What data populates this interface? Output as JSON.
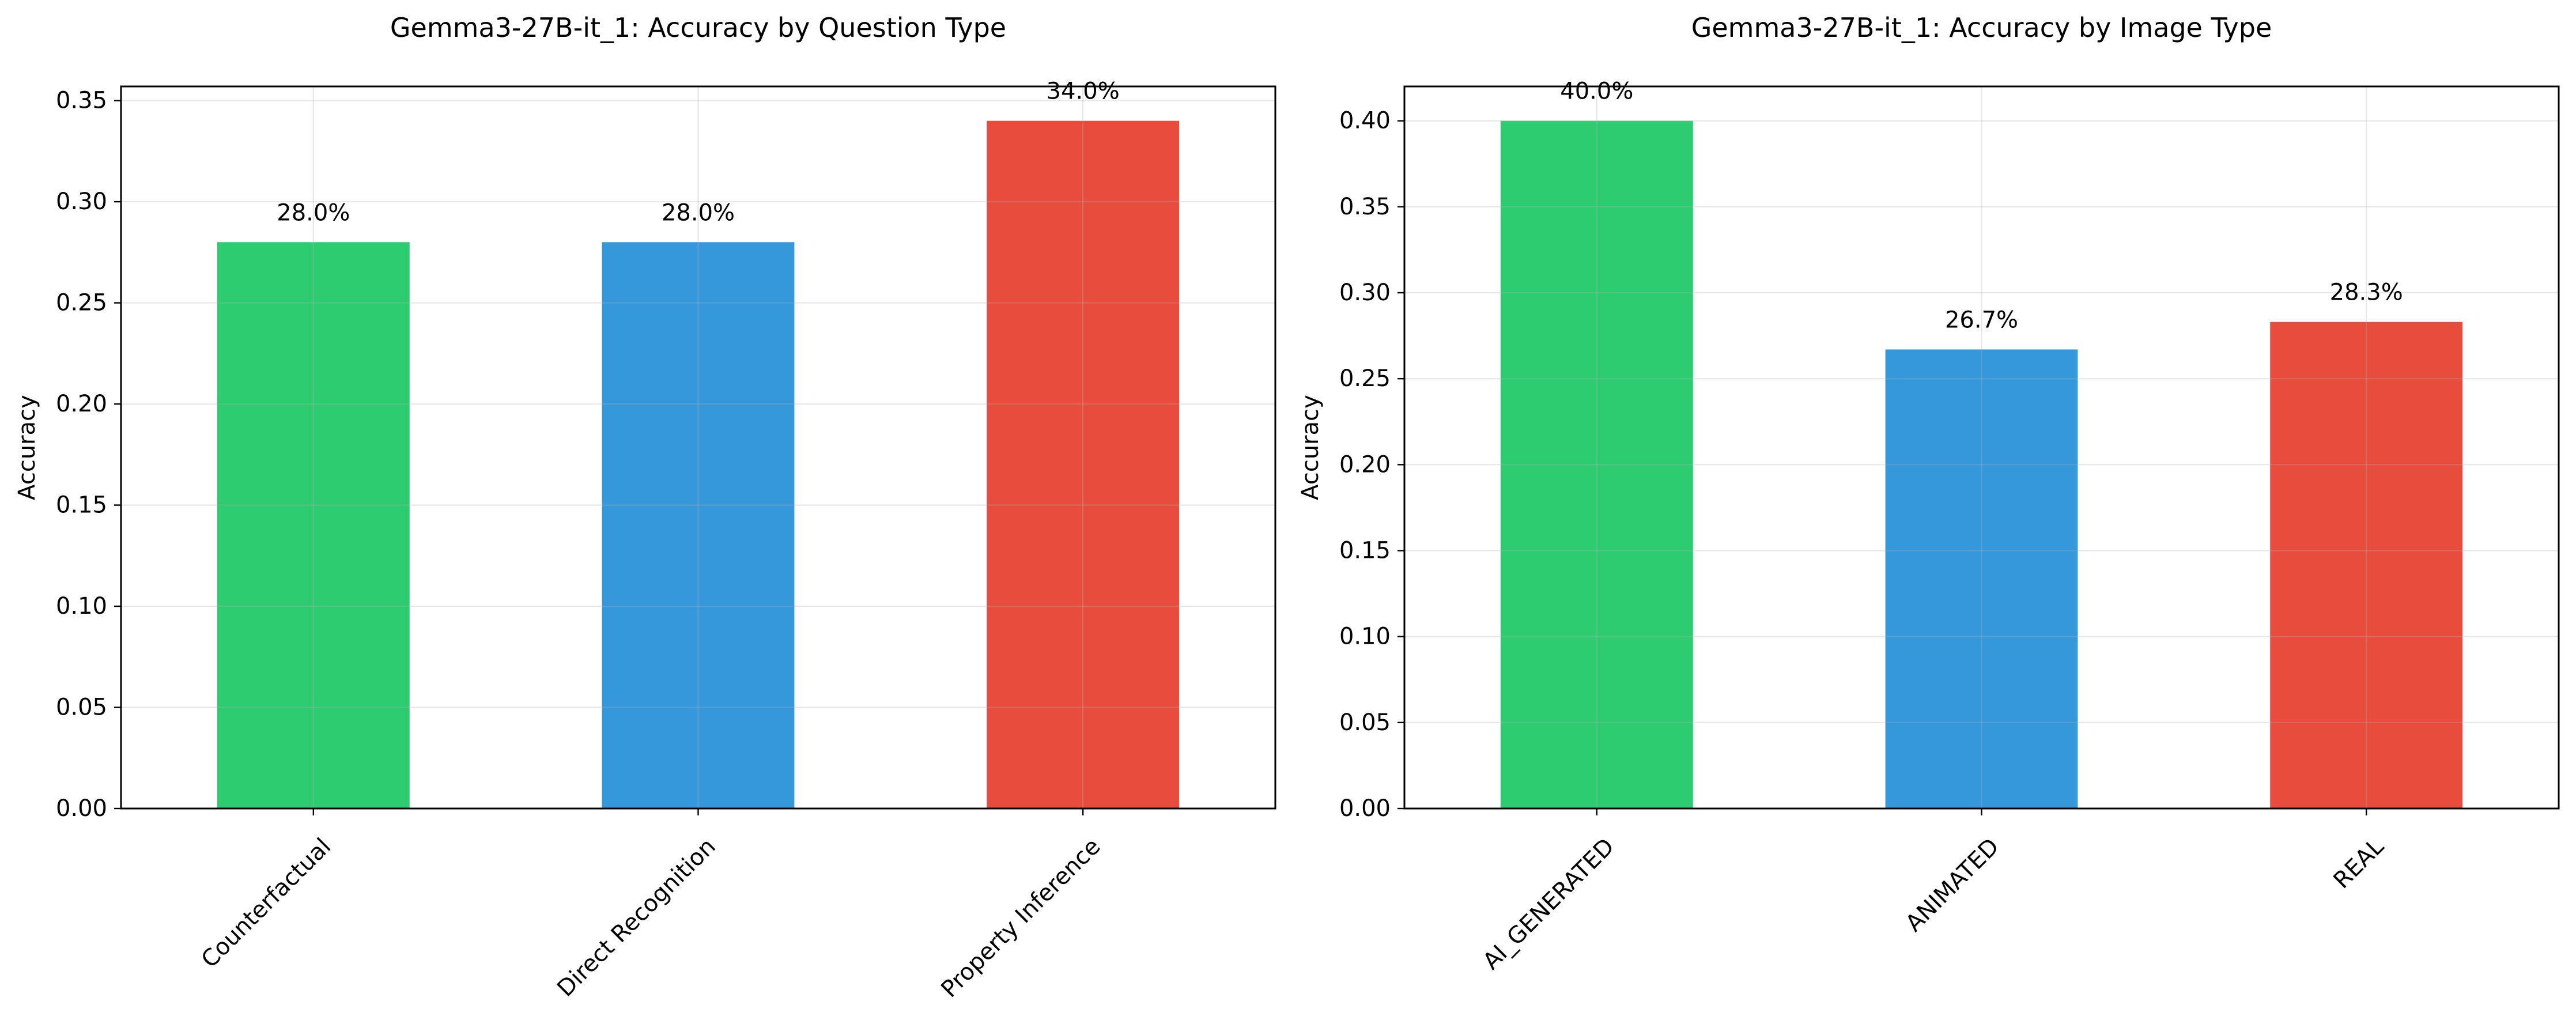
{
  "chart_data": [
    {
      "type": "bar",
      "title": "Gemma3-27B-it_1: Accuracy by Question Type",
      "xlabel": "",
      "ylabel": "Accuracy",
      "categories": [
        "Counterfactual",
        "Direct Recognition",
        "Property Inference"
      ],
      "values": [
        0.28,
        0.28,
        0.34
      ],
      "value_labels": [
        "28.0%",
        "28.0%",
        "34.0%"
      ],
      "colors": [
        "#2ecc71",
        "#3498db",
        "#e74c3c"
      ],
      "ylim": [
        0,
        0.357
      ],
      "yticks": [
        0.0,
        0.05,
        0.1,
        0.15,
        0.2,
        0.25,
        0.3,
        0.35
      ],
      "ytick_labels": [
        "0.00",
        "0.05",
        "0.10",
        "0.15",
        "0.20",
        "0.25",
        "0.30",
        "0.35"
      ],
      "grid": true,
      "xtick_rotation": 45
    },
    {
      "type": "bar",
      "title": "Gemma3-27B-it_1: Accuracy by Image Type",
      "xlabel": "",
      "ylabel": "Accuracy",
      "categories": [
        "AI_GENERATED",
        "ANIMATED",
        "REAL"
      ],
      "values": [
        0.4,
        0.267,
        0.283
      ],
      "value_labels": [
        "40.0%",
        "26.7%",
        "28.3%"
      ],
      "colors": [
        "#2ecc71",
        "#3498db",
        "#e74c3c"
      ],
      "ylim": [
        0,
        0.42
      ],
      "yticks": [
        0.0,
        0.05,
        0.1,
        0.15,
        0.2,
        0.25,
        0.3,
        0.35,
        0.4
      ],
      "ytick_labels": [
        "0.00",
        "0.05",
        "0.10",
        "0.15",
        "0.20",
        "0.25",
        "0.30",
        "0.35",
        "0.40"
      ],
      "grid": true,
      "xtick_rotation": 45
    }
  ]
}
